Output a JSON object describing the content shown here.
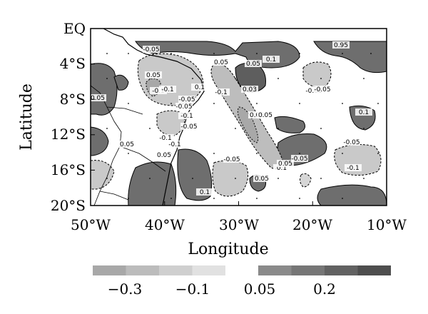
{
  "figure": {
    "ylabel": "Latitude",
    "xlabel": "Longitude",
    "lat_ticks": [
      "EQ",
      "4°S",
      "8°S",
      "12°S",
      "16°S",
      "20°S"
    ],
    "lon_ticks": [
      "50°W",
      "40°W",
      "30°W",
      "20°W",
      "10°W"
    ],
    "colorbar": {
      "neg_labels": [
        "−0.3",
        "−0.1"
      ],
      "pos_labels": [
        "0.05",
        "0.2"
      ],
      "neg_colors": [
        "#a8a8a8",
        "#bcbcbc",
        "#cfcfcf",
        "#e1e1e1"
      ],
      "pos_colors": [
        "#8a8a8a",
        "#767676",
        "#626262",
        "#4e4e4e"
      ]
    },
    "contour_labels": [
      "-0.05",
      "0.05",
      "0.1",
      "-0.1",
      "0.05",
      "-0.05",
      "-0.1",
      "0.03",
      "-0.05",
      "0.1",
      "-0.1",
      "-0.05",
      "0.05",
      "-0.1",
      "0.05",
      "-0.1",
      "0.05",
      "-0.05",
      "0.1",
      "0.05",
      "-0.05",
      "0.05",
      "-0.05",
      "-0.1",
      "-0.05",
      "0.1",
      "0.05",
      "-0.1",
      "0.05",
      "0.05",
      "0.1",
      "-0.05",
      "0.95"
    ]
  }
}
